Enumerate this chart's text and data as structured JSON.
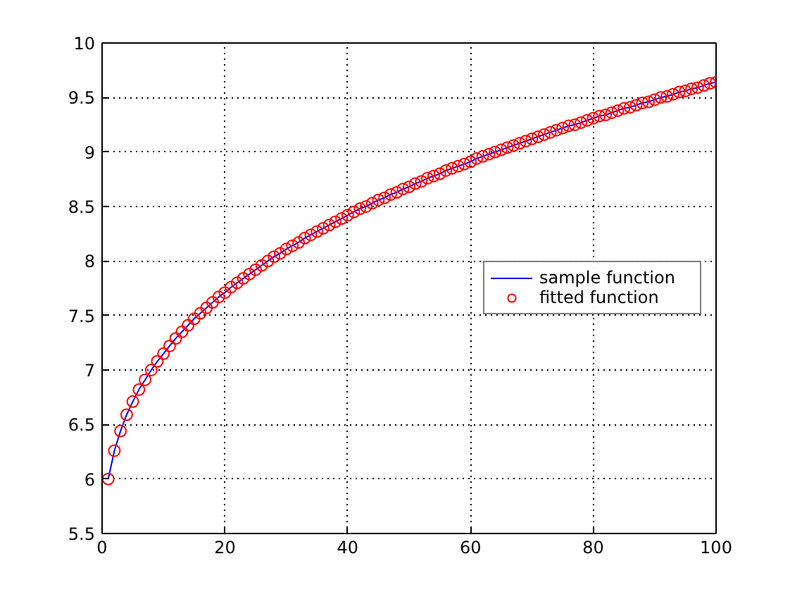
{
  "chart_data": {
    "type": "line",
    "xlim": [
      0,
      100
    ],
    "ylim": [
      5.5,
      10
    ],
    "xticks": [
      0,
      20,
      40,
      60,
      80,
      100
    ],
    "yticks": [
      5.5,
      6,
      {
        "value": 6.5,
        "label": "6.5"
      },
      7,
      {
        "value": 7.5,
        "label": "7.5"
      },
      8,
      {
        "value": 8.5,
        "label": "8.5"
      },
      9,
      {
        "value": 9.5,
        "label": "9.5"
      },
      10
    ],
    "grid": true,
    "legend": "right",
    "series": [
      {
        "name": "sample function",
        "marker": "none",
        "line_style": "solid",
        "color": "#0000ff",
        "x": [
          1,
          2,
          3,
          4,
          5,
          6,
          7,
          8,
          9,
          10,
          11,
          12,
          13,
          14,
          15,
          16,
          17,
          18,
          19,
          20,
          21,
          22,
          23,
          24,
          25,
          26,
          27,
          28,
          29,
          30,
          31,
          32,
          33,
          34,
          35,
          36,
          37,
          38,
          39,
          40,
          41,
          42,
          43,
          44,
          45,
          46,
          47,
          48,
          49,
          50,
          51,
          52,
          53,
          54,
          55,
          56,
          57,
          58,
          59,
          60,
          61,
          62,
          63,
          64,
          65,
          66,
          67,
          68,
          69,
          70,
          71,
          72,
          73,
          74,
          75,
          76,
          77,
          78,
          79,
          80,
          81,
          82,
          83,
          84,
          85,
          86,
          87,
          88,
          89,
          90,
          91,
          92,
          93,
          94,
          95,
          96,
          97,
          98,
          99,
          100
        ],
        "values": [
          6.0,
          6.26,
          6.44,
          6.59,
          6.71,
          6.82,
          6.91,
          7.0,
          7.08,
          7.15,
          7.22,
          7.29,
          7.35,
          7.41,
          7.47,
          7.52,
          7.57,
          7.62,
          7.67,
          7.71,
          7.76,
          7.8,
          7.84,
          7.88,
          7.92,
          7.96,
          8.0,
          8.04,
          8.07,
          8.11,
          8.14,
          8.17,
          8.21,
          8.24,
          8.27,
          8.3,
          8.33,
          8.36,
          8.39,
          8.42,
          8.45,
          8.48,
          8.5,
          8.53,
          8.56,
          8.58,
          8.61,
          8.63,
          8.66,
          8.68,
          8.71,
          8.73,
          8.76,
          8.78,
          8.8,
          8.83,
          8.85,
          8.87,
          8.89,
          8.91,
          8.94,
          8.96,
          8.98,
          9.0,
          9.02,
          9.04,
          9.06,
          9.08,
          9.1,
          9.12,
          9.14,
          9.16,
          9.18,
          9.2,
          9.22,
          9.24,
          9.25,
          9.27,
          9.29,
          9.31,
          9.33,
          9.34,
          9.36,
          9.38,
          9.4,
          9.41,
          9.43,
          9.45,
          9.46,
          9.48,
          9.5,
          9.51,
          9.53,
          9.55,
          9.56,
          9.58,
          9.59,
          9.61,
          9.63,
          9.64
        ]
      },
      {
        "name": "fitted function",
        "type": "scatter",
        "marker": "circle",
        "color": "#ff0000",
        "x": [
          1,
          2,
          3,
          4,
          5,
          6,
          7,
          8,
          9,
          10,
          11,
          12,
          13,
          14,
          15,
          16,
          17,
          18,
          19,
          20,
          21,
          22,
          23,
          24,
          25,
          26,
          27,
          28,
          29,
          30,
          31,
          32,
          33,
          34,
          35,
          36,
          37,
          38,
          39,
          40,
          41,
          42,
          43,
          44,
          45,
          46,
          47,
          48,
          49,
          50,
          51,
          52,
          53,
          54,
          55,
          56,
          57,
          58,
          59,
          60,
          61,
          62,
          63,
          64,
          65,
          66,
          67,
          68,
          69,
          70,
          71,
          72,
          73,
          74,
          75,
          76,
          77,
          78,
          79,
          80,
          81,
          82,
          83,
          84,
          85,
          86,
          87,
          88,
          89,
          90,
          91,
          92,
          93,
          94,
          95,
          96,
          97,
          98,
          99,
          100
        ],
        "values": [
          6.0,
          6.26,
          6.44,
          6.59,
          6.71,
          6.82,
          6.91,
          7.0,
          7.08,
          7.15,
          7.22,
          7.29,
          7.35,
          7.41,
          7.47,
          7.52,
          7.57,
          7.62,
          7.67,
          7.71,
          7.76,
          7.8,
          7.84,
          7.88,
          7.92,
          7.96,
          8.0,
          8.04,
          8.07,
          8.11,
          8.14,
          8.17,
          8.21,
          8.24,
          8.27,
          8.3,
          8.33,
          8.36,
          8.39,
          8.42,
          8.45,
          8.48,
          8.5,
          8.53,
          8.56,
          8.58,
          8.61,
          8.63,
          8.66,
          8.68,
          8.71,
          8.73,
          8.76,
          8.78,
          8.8,
          8.83,
          8.85,
          8.87,
          8.89,
          8.91,
          8.94,
          8.96,
          8.98,
          9.0,
          9.02,
          9.04,
          9.06,
          9.08,
          9.1,
          9.12,
          9.14,
          9.16,
          9.18,
          9.2,
          9.22,
          9.24,
          9.25,
          9.27,
          9.29,
          9.31,
          9.33,
          9.34,
          9.36,
          9.38,
          9.4,
          9.41,
          9.43,
          9.45,
          9.46,
          9.48,
          9.5,
          9.51,
          9.53,
          9.55,
          9.56,
          9.58,
          9.59,
          9.61,
          9.63,
          9.64
        ]
      }
    ]
  }
}
